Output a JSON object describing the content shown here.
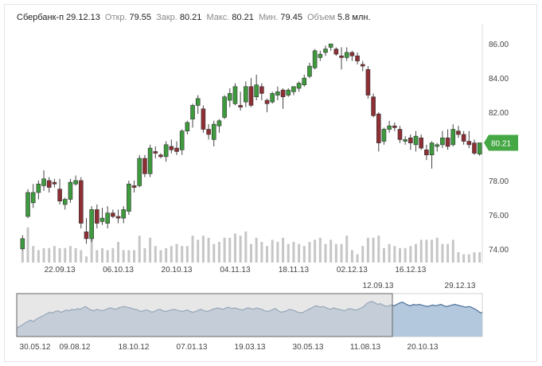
{
  "header": {
    "ticker": "Сбербанк-п",
    "date": "29.12.13",
    "open_label": "Откр.",
    "open": "79.55",
    "close_label": "Закр.",
    "close": "80.21",
    "high_label": "Макс.",
    "high": "80.21",
    "low_label": "Мин.",
    "low": "79.45",
    "volume_label": "Объем",
    "volume": "5.8 млн."
  },
  "colors": {
    "up": "#3d9a3d",
    "down": "#8e2f34",
    "wick": "#444444",
    "volume": "#c6c6c6",
    "price_badge": "#45a845",
    "navigator_fill": "#b3c8dd",
    "navigator_line": "#4a6f9a",
    "navigator_mask": "#d4d4d4"
  },
  "chart_data": [
    {
      "type": "candlestick",
      "title": "",
      "xlabel": "",
      "ylabel": "",
      "ylim": [
        73.2,
        86.8
      ],
      "yticks": [
        "86.00",
        "84.00",
        "82.00",
        "80.00",
        "78.00",
        "76.00",
        "74.00"
      ],
      "ytick_values": [
        86,
        84,
        82,
        80,
        78,
        76,
        74
      ],
      "xticks": [
        "22.09.13",
        "06.10.13",
        "20.10.13",
        "04.11.13",
        "18.11.13",
        "02.12.13",
        "16.12.13"
      ],
      "xtick_index": [
        7,
        18,
        29,
        40,
        51,
        62,
        73
      ],
      "last_price": "80.21",
      "grid": false,
      "ohlc": [
        [
          74.0,
          74.8,
          73.9,
          74.6
        ],
        [
          75.9,
          77.5,
          75.8,
          77.3
        ],
        [
          76.7,
          77.8,
          76.4,
          77.3
        ],
        [
          77.3,
          78.0,
          76.9,
          77.8
        ],
        [
          77.7,
          78.6,
          77.4,
          78.1
        ],
        [
          78.0,
          78.2,
          77.3,
          77.6
        ],
        [
          77.9,
          78.1,
          77.6,
          77.8
        ],
        [
          77.5,
          78.1,
          76.6,
          76.8
        ],
        [
          76.6,
          77.0,
          76.3,
          76.9
        ],
        [
          76.9,
          78.1,
          76.7,
          77.9
        ],
        [
          77.8,
          78.3,
          77.7,
          78.0
        ],
        [
          78.0,
          78.2,
          75.2,
          75.5
        ],
        [
          75.0,
          75.8,
          74.3,
          74.6
        ],
        [
          74.6,
          76.5,
          74.4,
          76.3
        ],
        [
          76.3,
          76.6,
          75.2,
          75.5
        ],
        [
          75.6,
          76.4,
          75.4,
          75.8
        ],
        [
          75.5,
          76.5,
          75.2,
          76.1
        ],
        [
          76.1,
          76.3,
          75.8,
          75.9
        ],
        [
          75.9,
          76.3,
          75.5,
          75.8
        ],
        [
          75.8,
          76.5,
          75.5,
          76.3
        ],
        [
          76.2,
          78.0,
          76.0,
          77.8
        ],
        [
          77.7,
          78.0,
          77.3,
          77.6
        ],
        [
          77.7,
          79.5,
          77.6,
          79.3
        ],
        [
          79.3,
          79.5,
          78.2,
          78.4
        ],
        [
          78.4,
          80.1,
          78.2,
          79.9
        ],
        [
          79.7,
          80.0,
          79.3,
          79.6
        ],
        [
          79.5,
          79.6,
          79.3,
          79.4
        ],
        [
          79.4,
          80.3,
          79.1,
          80.1
        ],
        [
          80.0,
          80.4,
          79.6,
          79.8
        ],
        [
          79.9,
          80.3,
          79.5,
          79.7
        ],
        [
          79.8,
          81.0,
          79.5,
          80.9
        ],
        [
          80.9,
          81.5,
          80.7,
          81.4
        ],
        [
          81.6,
          82.5,
          81.1,
          82.4
        ],
        [
          82.4,
          83.0,
          81.9,
          82.8
        ],
        [
          82.2,
          82.4,
          80.8,
          81.0
        ],
        [
          81.0,
          81.3,
          80.4,
          80.7
        ],
        [
          80.4,
          81.5,
          80.0,
          81.3
        ],
        [
          81.2,
          81.6,
          80.8,
          81.5
        ],
        [
          81.7,
          83.0,
          81.6,
          82.9
        ],
        [
          82.7,
          83.4,
          82.3,
          83.1
        ],
        [
          82.5,
          83.7,
          82.4,
          83.5
        ],
        [
          82.4,
          83.2,
          82.1,
          82.3
        ],
        [
          82.6,
          83.8,
          82.3,
          83.5
        ],
        [
          83.5,
          84.0,
          82.3,
          82.4
        ],
        [
          82.9,
          84.2,
          82.7,
          83.6
        ],
        [
          83.5,
          83.7,
          82.7,
          83.1
        ],
        [
          82.7,
          82.8,
          82.0,
          82.5
        ],
        [
          82.6,
          83.2,
          82.5,
          83.1
        ],
        [
          83.0,
          83.5,
          82.7,
          83.2
        ],
        [
          83.3,
          83.4,
          82.2,
          82.9
        ],
        [
          83.0,
          83.4,
          82.9,
          83.3
        ],
        [
          83.2,
          83.5,
          83.0,
          83.5
        ],
        [
          83.4,
          83.8,
          83.2,
          83.7
        ],
        [
          83.6,
          84.2,
          83.5,
          84.0
        ],
        [
          84.1,
          84.9,
          84.0,
          84.7
        ],
        [
          84.6,
          85.7,
          84.5,
          85.6
        ],
        [
          85.2,
          85.6,
          85.0,
          85.4
        ],
        [
          85.5,
          85.9,
          85.3,
          85.7
        ],
        [
          85.8,
          86.0,
          85.6,
          86.0
        ],
        [
          85.7,
          85.8,
          85.3,
          85.4
        ],
        [
          85.3,
          85.8,
          84.5,
          85.2
        ],
        [
          85.2,
          85.8,
          85.0,
          85.5
        ],
        [
          85.5,
          85.6,
          85.0,
          85.3
        ],
        [
          85.3,
          85.5,
          84.8,
          85.0
        ],
        [
          84.8,
          85.0,
          84.4,
          84.7
        ],
        [
          84.5,
          84.7,
          82.8,
          83.0
        ],
        [
          82.9,
          83.1,
          81.7,
          81.8
        ],
        [
          81.9,
          82.0,
          79.7,
          80.2
        ],
        [
          80.3,
          81.1,
          80.1,
          81.0
        ],
        [
          81.0,
          81.5,
          80.8,
          81.2
        ],
        [
          81.2,
          81.4,
          80.9,
          81.1
        ],
        [
          81.0,
          81.2,
          80.2,
          80.4
        ],
        [
          80.3,
          80.6,
          80.1,
          80.4
        ],
        [
          80.5,
          80.7,
          79.8,
          80.2
        ],
        [
          80.1,
          80.9,
          79.7,
          80.6
        ],
        [
          80.5,
          80.7,
          79.8,
          79.9
        ],
        [
          79.8,
          80.1,
          79.2,
          79.5
        ],
        [
          79.5,
          80.3,
          78.7,
          80.2
        ],
        [
          80.0,
          80.2,
          79.7,
          80.1
        ],
        [
          80.1,
          80.9,
          79.9,
          80.5
        ],
        [
          80.5,
          81.0,
          79.8,
          80.0
        ],
        [
          80.1,
          81.3,
          80.0,
          81.0
        ],
        [
          80.9,
          81.2,
          80.5,
          80.7
        ],
        [
          80.7,
          80.9,
          80.1,
          80.3
        ],
        [
          80.3,
          80.9,
          79.9,
          80.1
        ],
        [
          80.2,
          80.4,
          79.5,
          79.6
        ],
        [
          79.55,
          80.21,
          79.45,
          80.21
        ]
      ],
      "volume_bars": [
        0.3,
        0.85,
        0.4,
        0.3,
        0.35,
        0.35,
        0.4,
        0.35,
        0.35,
        0.4,
        0.35,
        0.3,
        0.15,
        0.85,
        0.3,
        0.35,
        0.3,
        0.35,
        0.5,
        0.3,
        0.3,
        0.3,
        0.65,
        0.35,
        0.6,
        0.4,
        0.3,
        0.35,
        0.4,
        0.45,
        0.4,
        0.4,
        0.65,
        0.55,
        0.65,
        0.6,
        0.45,
        0.5,
        0.6,
        0.6,
        0.7,
        0.65,
        0.75,
        0.45,
        0.6,
        0.5,
        0.4,
        0.55,
        0.5,
        0.6,
        0.45,
        0.5,
        0.45,
        0.4,
        0.5,
        0.55,
        0.6,
        0.45,
        0.55,
        0.45,
        0.45,
        0.65,
        0.3,
        0.2,
        0.4,
        0.6,
        0.6,
        0.65,
        0.35,
        0.45,
        0.4,
        0.35,
        0.35,
        0.4,
        0.45,
        0.55,
        0.55,
        0.55,
        0.6,
        0.45,
        0.45,
        0.55,
        0.25,
        0.2,
        0.2,
        0.25,
        0.25
      ]
    },
    {
      "type": "area",
      "title": "",
      "xticks": [
        "30.05.12",
        "09.08.12",
        "18.10.12",
        "07.01.13",
        "19.03.13",
        "30.05.13",
        "11.08.13",
        "20.10.13"
      ],
      "selection_start": "12.09.13",
      "selection_end": "29.12.13",
      "values": [
        62,
        64,
        66,
        69,
        71,
        73,
        71,
        74,
        76,
        78,
        80,
        82,
        84,
        83,
        85,
        86,
        84,
        85,
        87,
        86,
        88,
        87,
        89,
        88,
        90,
        92,
        89,
        87,
        86,
        88,
        87,
        86,
        87,
        89,
        90,
        89,
        88,
        90,
        91,
        92,
        91,
        90,
        89,
        88,
        87,
        85,
        86,
        87,
        86,
        84,
        85,
        87,
        88,
        86,
        85,
        86,
        87,
        88,
        87,
        86,
        85,
        86,
        87,
        85,
        84,
        85,
        87,
        88,
        86,
        85,
        86,
        88,
        89,
        90,
        89,
        88,
        90,
        91,
        89,
        90,
        89,
        88,
        87,
        89,
        90,
        89,
        88,
        90,
        89,
        88,
        86,
        85,
        86,
        88,
        89,
        86,
        84,
        85,
        86,
        88,
        87,
        86,
        84,
        83,
        84,
        86,
        88,
        90,
        92,
        93,
        91,
        92,
        91,
        89,
        88,
        90,
        89,
        88,
        87,
        86,
        88,
        89,
        88,
        87,
        88,
        90,
        92,
        96,
        98,
        99,
        97,
        95,
        96,
        94,
        92,
        93,
        94,
        93,
        95,
        97,
        98,
        96,
        94,
        93,
        95,
        94,
        95,
        94,
        93,
        92,
        93,
        94,
        93,
        94,
        95,
        93,
        92,
        93,
        94,
        95,
        94,
        93,
        92,
        91,
        92,
        91,
        89,
        87,
        84,
        83
      ]
    }
  ]
}
